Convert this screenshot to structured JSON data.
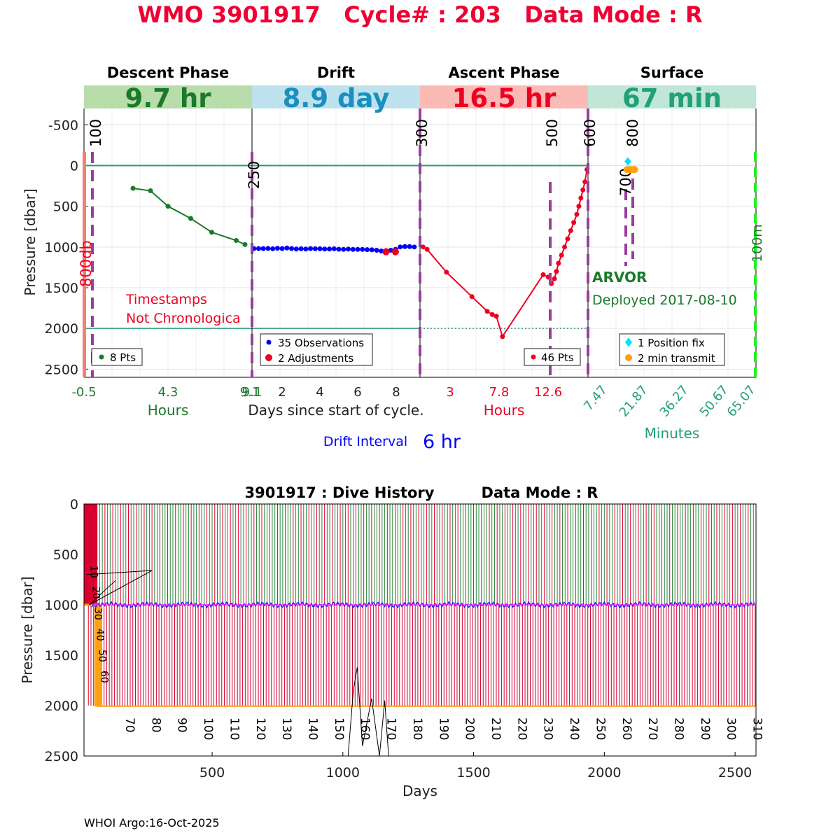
{
  "page": {
    "title": "WMO 3901917   Cycle# : 203   Data Mode : R",
    "footer": "WHOI Argo:16-Oct-2025"
  },
  "colors": {
    "title": "#ee0033",
    "descent": "#1a7a2a",
    "drift": "#0000ff",
    "ascent": "#ee0022",
    "surface": "#22a07a",
    "purple": "#9b3da0",
    "orange": "#ffa010",
    "cyan": "#00e5ff",
    "descent_band": "#b9dcab",
    "drift_band": "#bde2ee",
    "ascent_band": "#fbbab6",
    "surface_band": "#bfe6d6"
  },
  "chart_data": [
    {
      "type": "line",
      "id": "cycle-profile",
      "ylabel": "Pressure [dbar]",
      "ylim": [
        2600,
        -700
      ],
      "yticks": [
        -500,
        0,
        500,
        1000,
        1500,
        2000,
        2500
      ],
      "y_reversed": true,
      "grid": true,
      "panels": [
        {
          "name": "descent",
          "header": "Descent Phase",
          "duration": "9.7 hr",
          "xlabel": "Hours",
          "xlim": [
            -0.5,
            9.1
          ],
          "xticks": [
            "-0.5",
            "4.3",
            "9.1"
          ],
          "legend": "8 Pts",
          "vlines": [
            {
              "x": 0,
              "label": "100"
            }
          ],
          "annotation": [
            "Timestamps",
            "Not Chronologica"
          ],
          "side_label": "800db",
          "series": [
            {
              "x": [
                2.3,
                3.3,
                4.3,
                5.6,
                6.8,
                8.2,
                8.7
              ],
              "y": [
                280,
                310,
                500,
                650,
                820,
                920,
                970
              ]
            }
          ]
        },
        {
          "name": "drift",
          "header": "Drift",
          "duration": "8.9 day",
          "xlabel": "Days since start of cycle.",
          "xlim": [
            0.4,
            9.3
          ],
          "xticks": [
            "2",
            "4",
            "6",
            "8"
          ],
          "legend": [
            "35 Observations",
            "2 Adjustments"
          ],
          "vlines": [
            {
              "x": 0.4,
              "label": "250"
            },
            {
              "x": 9.3,
              "label": "300"
            }
          ],
          "series": [
            {
              "name": "35 Observations",
              "x": [
                0.5,
                0.75,
                1.0,
                1.25,
                1.5,
                1.75,
                2.0,
                2.25,
                2.5,
                2.75,
                3.0,
                3.25,
                3.5,
                3.75,
                4.0,
                4.25,
                4.5,
                4.75,
                5.0,
                5.25,
                5.5,
                5.75,
                6.0,
                6.25,
                6.5,
                6.75,
                7.0,
                7.25,
                7.5,
                7.75,
                8.0,
                8.25,
                8.5,
                8.75,
                9.0
              ],
              "y": [
                1020,
                1020,
                1020,
                1018,
                1022,
                1016,
                1020,
                1012,
                1020,
                1025,
                1022,
                1025,
                1020,
                1022,
                1022,
                1025,
                1025,
                1022,
                1028,
                1030,
                1026,
                1030,
                1030,
                1030,
                1033,
                1035,
                1040,
                1050,
                1045,
                1040,
                1030,
                1000,
                995,
                995,
                1000
              ]
            },
            {
              "name": "2 Adjustments",
              "x": [
                7.5,
                8.0
              ],
              "y": [
                1060,
                1060
              ]
            }
          ]
        },
        {
          "name": "ascent",
          "header": "Ascent Phase",
          "duration": "16.5 hr",
          "xlabel": "Hours",
          "xlim": [
            -0.3,
            16.2
          ],
          "xticks": [
            "3",
            "7.8",
            "12.6"
          ],
          "legend": "46 Pts",
          "vlines": [
            {
              "x": 12.6,
              "label": "500"
            },
            {
              "x": 16.2,
              "label": "600"
            }
          ],
          "series": [
            {
              "x": [
                0.0,
                0.4,
                2.3,
                4.8,
                6.3,
                6.8,
                7.2,
                7.8,
                11.8,
                12.3,
                12.6,
                12.9,
                13.1,
                13.3,
                13.6,
                13.9,
                14.2,
                14.5,
                14.8,
                15.1,
                15.3,
                15.5,
                15.7,
                15.9,
                16.1
              ],
              "y": [
                1000,
                1030,
                1310,
                1610,
                1790,
                1830,
                1850,
                2100,
                1340,
                1370,
                1450,
                1390,
                1300,
                1200,
                1100,
                1000,
                900,
                800,
                700,
                600,
                500,
                400,
                300,
                200,
                50
              ]
            }
          ]
        },
        {
          "name": "surface",
          "header": "Surface",
          "duration": "67 min",
          "xlabel": "Minutes",
          "xlim": [
            0,
            67
          ],
          "xticks": [
            "7.47",
            "21.87",
            "36.27",
            "50.67",
            "65.07"
          ],
          "legend": [
            "1 Position fix",
            "2 min transmit"
          ],
          "vlines": [
            {
              "x": 15,
              "label": "700"
            },
            {
              "x": 18,
              "label": "800"
            }
          ],
          "float_type": "ARVOR",
          "deployed": "Deployed 2017-08-10",
          "side_label": "100m",
          "series": [
            {
              "name": "1 Position fix",
              "x": [
                15.9
              ],
              "y": [
                -50
              ]
            },
            {
              "name": "2 min transmit",
              "x": [
                15.6,
                16.2,
                16.8,
                17.4,
                18.0,
                18.6
              ],
              "y": [
                50,
                50,
                50,
                50,
                50,
                50
              ]
            }
          ]
        }
      ],
      "drift_interval_label": "Drift Interval",
      "drift_interval_value": "6 hr"
    },
    {
      "type": "line",
      "id": "dive-history",
      "title": "3901917 : Dive History",
      "title_mode": "Data Mode : R",
      "xlabel": "Days",
      "ylabel": "Pressure [dbar]",
      "xlim": [
        10,
        2580
      ],
      "ylim": [
        2500,
        0
      ],
      "y_reversed": true,
      "xticks": [
        500,
        1000,
        1500,
        2000,
        2500
      ],
      "yticks": [
        0,
        500,
        1000,
        1500,
        2000,
        2500
      ],
      "cycle_labels": [
        "70",
        "80",
        "90",
        "100",
        "110",
        "120",
        "130",
        "140",
        "150",
        "160",
        "170",
        "180",
        "190",
        "200",
        "210",
        "220",
        "230",
        "240",
        "250",
        "260",
        "270",
        "280",
        "290",
        "300",
        "310"
      ],
      "cycle_label_days": [
        160,
        260,
        360,
        460,
        560,
        660,
        760,
        860,
        960,
        1060,
        1160,
        1260,
        1360,
        1460,
        1560,
        1660,
        1760,
        1860,
        1960,
        2060,
        2160,
        2260,
        2360,
        2460,
        2560
      ],
      "early_cycle_labels": [
        "10",
        "20",
        "30",
        "40",
        "50",
        "60"
      ],
      "parking_depth": 1000,
      "profile_depth": 2000,
      "cycle_period_days": 10
    }
  ]
}
